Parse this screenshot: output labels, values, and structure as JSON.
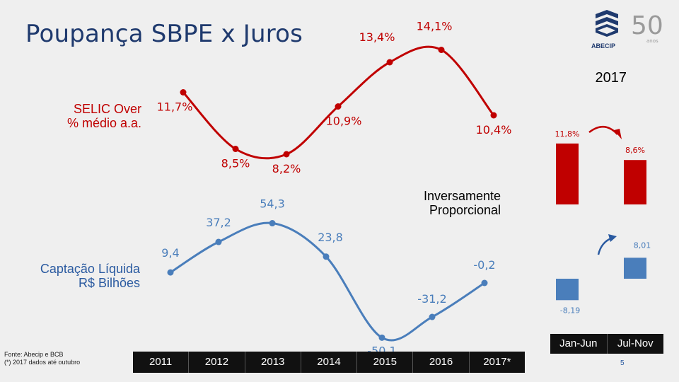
{
  "slide": {
    "title": "Poupança SBPE x Juros",
    "logo_text": "ABECIP",
    "period_label": "2017",
    "selic_label_line1": "SELIC Over",
    "selic_label_line2": "% médio a.a.",
    "captacao_label_line1": "Captação Líquida",
    "captacao_label_line2": "R$ Bilhões",
    "inverse_label_line1": "Inversamente",
    "inverse_label_line2": "Proporcional",
    "source_line1": "Fonte: Abecip e BCB",
    "source_line2": "(*) 2017 dados até outubro",
    "page_number": "5",
    "colors": {
      "red": "#c00000",
      "blue": "#4a7ebb",
      "title": "#1f3a6e"
    }
  },
  "chart_data": [
    {
      "type": "line",
      "x": [
        "2011",
        "2012",
        "2013",
        "2014",
        "2015",
        "2016",
        "2017*"
      ],
      "series": [
        {
          "values": [
            11.7,
            8.5,
            8.2,
            10.9,
            13.4,
            14.1,
            10.4
          ]
        }
      ],
      "labels": [
        "11,7%",
        "8,5%",
        "8,2%",
        "10,9%",
        "13,4%",
        "14,1%",
        "10,4%"
      ],
      "ylabel": "SELIC Over % médio a.a."
    },
    {
      "type": "line",
      "x": [
        "2011",
        "2012",
        "2013",
        "2014",
        "2015",
        "2016",
        "2017*"
      ],
      "series": [
        {
          "values": [
            9.4,
            37.2,
            54.3,
            23.8,
            -50.1,
            -31.2,
            -0.2
          ]
        }
      ],
      "labels": [
        "9,4",
        "37,2",
        "54,3",
        "23,8",
        "-50,1",
        "-31,2",
        "-0,2"
      ],
      "ylabel": "Captação Líquida R$ Bilhões"
    },
    {
      "type": "bar",
      "categories": [
        "Jan-Jun",
        "Jul-Nov"
      ],
      "values": [
        11.8,
        8.6
      ],
      "labels": [
        "11,8%",
        "8,6%"
      ]
    },
    {
      "type": "bar",
      "categories": [
        "Jan-Jun",
        "Jul-Nov"
      ],
      "values": [
        -8.19,
        8.01
      ],
      "labels": [
        "-8,19",
        "8,01"
      ]
    }
  ]
}
